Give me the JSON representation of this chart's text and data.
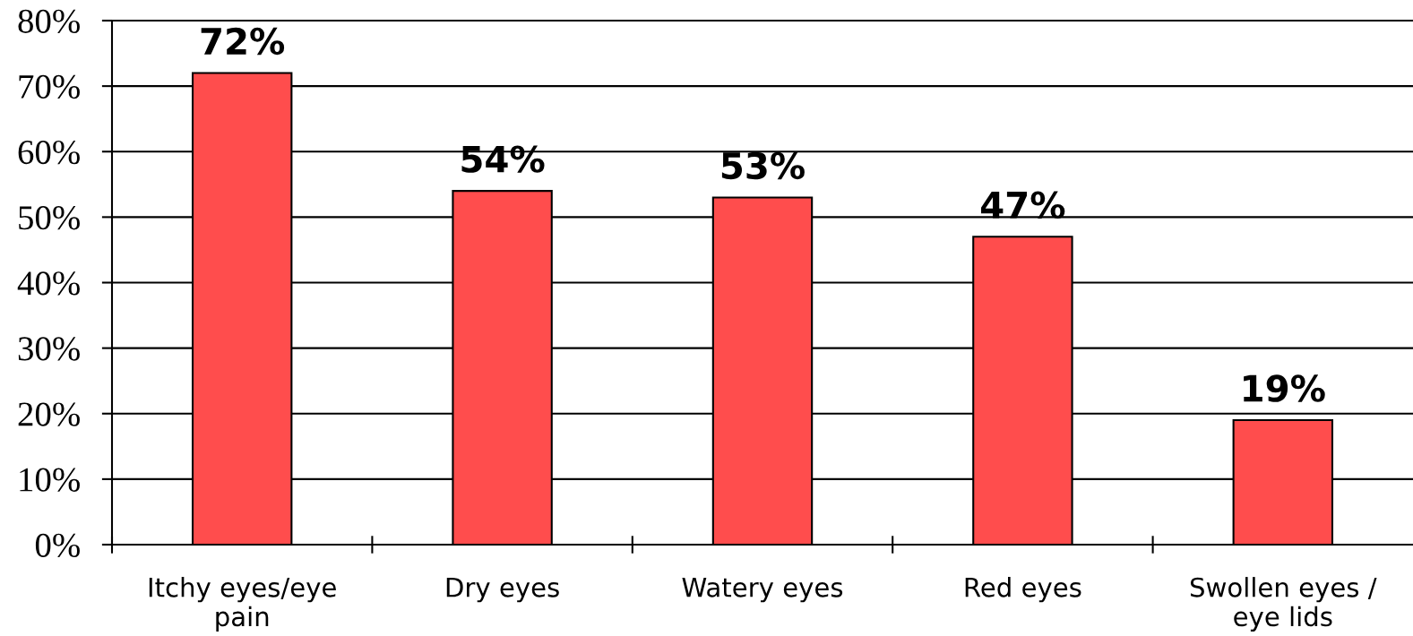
{
  "chart_data": {
    "type": "bar",
    "categories": [
      "Itchy eyes/eye\npain",
      "Dry eyes",
      "Watery eyes",
      "Red eyes",
      "Swollen eyes /\neye lids"
    ],
    "values": [
      72,
      54,
      53,
      47,
      19
    ],
    "value_labels": [
      "72%",
      "54%",
      "53%",
      "47%",
      "19%"
    ],
    "color": "#ff4d4d",
    "ylim": [
      0,
      80
    ],
    "yticks": [
      {
        "value": 0,
        "label": "0%"
      },
      {
        "value": 10,
        "label": "10%"
      },
      {
        "value": 20,
        "label": "20%"
      },
      {
        "value": 30,
        "label": "30%"
      },
      {
        "value": 40,
        "label": "40%"
      },
      {
        "value": 50,
        "label": "50%"
      },
      {
        "value": 60,
        "label": "60%"
      },
      {
        "value": 70,
        "label": "70%"
      },
      {
        "value": 80,
        "label": "80%"
      }
    ],
    "grid": "y"
  }
}
